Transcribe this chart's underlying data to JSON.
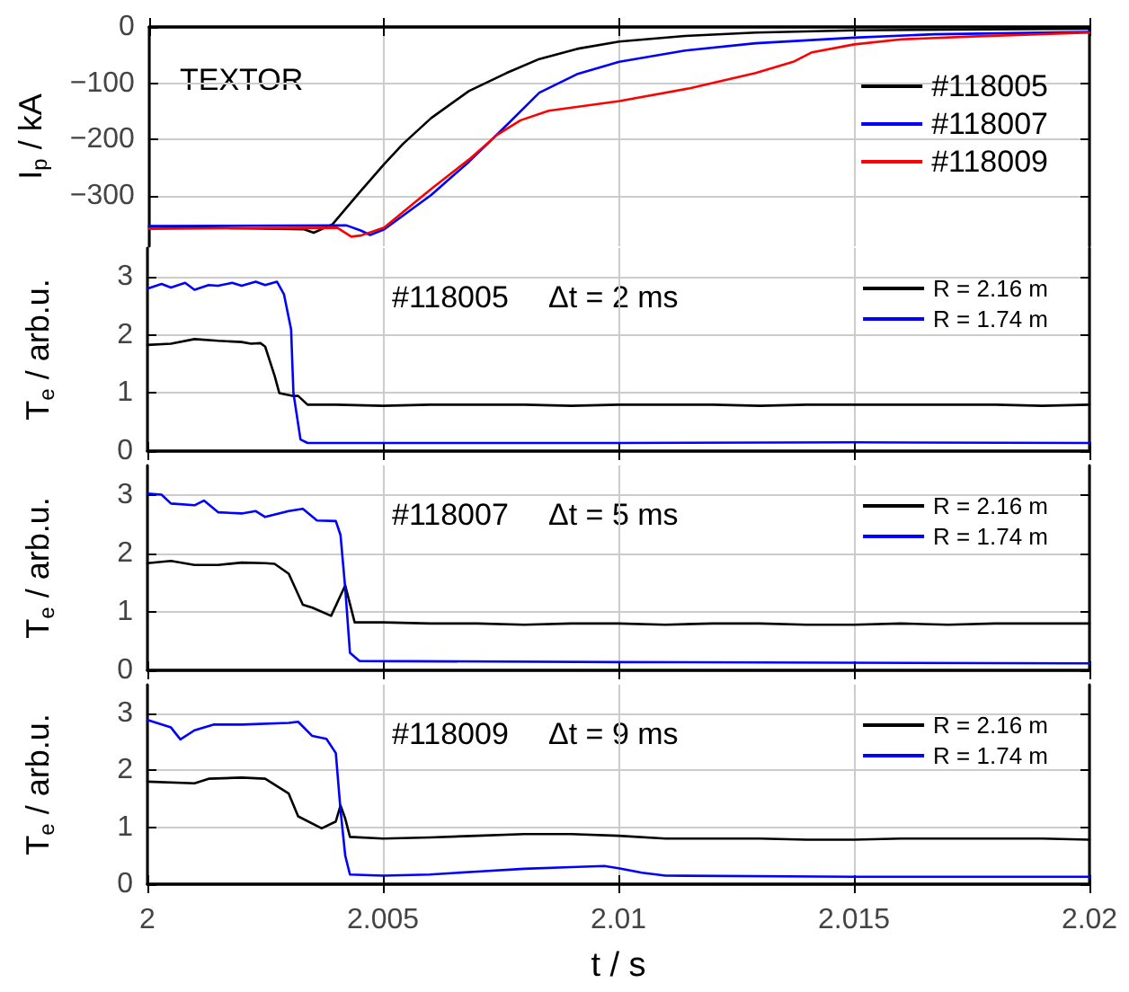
{
  "chart_data": [
    {
      "type": "line",
      "ylabel": "I$_{p}$ / kA",
      "annotations": [
        "TEXTOR"
      ],
      "legend": "right",
      "grid": true,
      "marker": "none",
      "tick_labels": "y",
      "xlim": [
        2,
        2.02
      ],
      "xticks": [
        2,
        2.005,
        2.01,
        2.015,
        2.02
      ],
      "ylim": [
        -390,
        0
      ],
      "yticks": [
        {
          "value": -300,
          "label": "−300"
        },
        {
          "value": -200,
          "label": "−200"
        },
        {
          "value": -100,
          "label": "−100"
        },
        0
      ],
      "series": [
        {
          "name": "#118005",
          "color": "#000000",
          "x": [
            2,
            2.0033,
            2.0035,
            2.0039,
            2.0045,
            2.005,
            2.0054,
            2.006,
            2.0068,
            2.0076,
            2.0083,
            2.0091,
            2.01,
            2.0114,
            2.0129,
            2.015,
            2.02
          ],
          "values": [
            -355,
            -360,
            -366,
            -351,
            -292,
            -244,
            -208,
            -162,
            -114,
            -82,
            -57,
            -39,
            -26,
            -16,
            -10,
            -6,
            -3
          ]
        },
        {
          "name": "#118007",
          "color": "#0000ff",
          "x": [
            2,
            2.0042,
            2.0045,
            2.0047,
            2.005,
            2.006,
            2.0068,
            2.0076,
            2.0083,
            2.0091,
            2.01,
            2.0114,
            2.0129,
            2.015,
            2.0167,
            2.02
          ],
          "values": [
            -354,
            -353,
            -362,
            -370,
            -360,
            -299,
            -240,
            -175,
            -117,
            -84,
            -62,
            -42,
            -29,
            -19,
            -13,
            -9
          ]
        },
        {
          "name": "#118009",
          "color": "#ff0000",
          "x": [
            2,
            2.004,
            2.0043,
            2.0045,
            2.005,
            2.006,
            2.0068,
            2.0074,
            2.0079,
            2.0085,
            2.01,
            2.0115,
            2.0129,
            2.0137,
            2.0141,
            2.015,
            2.016,
            2.0175,
            2.02
          ],
          "values": [
            -359,
            -357,
            -373,
            -371,
            -357,
            -288,
            -236,
            -192,
            -166,
            -149,
            -132,
            -109,
            -82,
            -62,
            -45,
            -31,
            -22,
            -17,
            -10
          ]
        }
      ]
    },
    {
      "type": "line",
      "ylabel": "T$_{e}$ / arb.u.",
      "annotations": [
        "#118005",
        "Δt = 2 ms"
      ],
      "legend": "top right",
      "grid": true,
      "marker": "none",
      "tick_labels": "y",
      "xlim": [
        2,
        2.02
      ],
      "xticks": [
        2,
        2.005,
        2.01,
        2.015,
        2.02
      ],
      "ylim": [
        0,
        3.5
      ],
      "yticks": [
        0,
        1,
        2,
        3
      ],
      "series": [
        {
          "name": "R = 2.16 m",
          "color": "#000000",
          "x": [
            2,
            2.0005,
            2.001,
            2.0015,
            2.002,
            2.0022,
            2.0024,
            2.0025,
            2.0027,
            2.0028,
            2.0031,
            2.0032,
            2.0034,
            2.004,
            2.005,
            2.006,
            2.007,
            2.008,
            2.009,
            2.01,
            2.011,
            2.012,
            2.013,
            2.014,
            2.015,
            2.016,
            2.017,
            2.018,
            2.019,
            2.02
          ],
          "values": [
            1.83,
            1.85,
            1.93,
            1.9,
            1.88,
            1.85,
            1.86,
            1.8,
            1.3,
            1.0,
            0.95,
            0.95,
            0.8,
            0.8,
            0.78,
            0.8,
            0.8,
            0.8,
            0.78,
            0.8,
            0.8,
            0.8,
            0.78,
            0.8,
            0.8,
            0.8,
            0.8,
            0.8,
            0.78,
            0.8
          ]
        },
        {
          "name": "R = 1.74 m",
          "color": "#0000ff",
          "x": [
            2,
            2.0003,
            2.0005,
            2.0008,
            2.001,
            2.0013,
            2.0015,
            2.0018,
            2.002,
            2.0023,
            2.0025,
            2.00275,
            2.0029,
            2.00305,
            2.0031,
            2.00325,
            2.0034,
            2.005,
            2.01,
            2.015,
            2.02
          ],
          "values": [
            2.8,
            2.88,
            2.82,
            2.9,
            2.78,
            2.86,
            2.85,
            2.9,
            2.85,
            2.92,
            2.86,
            2.92,
            2.7,
            2.1,
            1.0,
            0.2,
            0.14,
            0.14,
            0.14,
            0.15,
            0.14
          ]
        }
      ]
    },
    {
      "type": "line",
      "ylabel": "T$_{e}$ / arb.u.",
      "annotations": [
        "#118007",
        "Δt = 5 ms"
      ],
      "legend": "top right",
      "grid": true,
      "marker": "none",
      "tick_labels": "y",
      "xlim": [
        2,
        2.02
      ],
      "xticks": [
        2,
        2.005,
        2.01,
        2.015,
        2.02
      ],
      "ylim": [
        0,
        3.5
      ],
      "yticks": [
        0,
        1,
        2,
        3
      ],
      "series": [
        {
          "name": "R = 2.16 m",
          "color": "#000000",
          "x": [
            2,
            2.0005,
            2.001,
            2.0015,
            2.002,
            2.0025,
            2.0027,
            2.003,
            2.0033,
            2.0035,
            2.0039,
            2.0042,
            2.0044,
            2.005,
            2.006,
            2.007,
            2.008,
            2.009,
            2.01,
            2.011,
            2.012,
            2.013,
            2.014,
            2.015,
            2.016,
            2.017,
            2.018,
            2.019,
            2.02
          ],
          "values": [
            1.83,
            1.87,
            1.8,
            1.8,
            1.84,
            1.83,
            1.82,
            1.65,
            1.12,
            1.07,
            0.93,
            1.45,
            0.82,
            0.82,
            0.8,
            0.8,
            0.78,
            0.8,
            0.8,
            0.78,
            0.8,
            0.8,
            0.78,
            0.78,
            0.8,
            0.78,
            0.8,
            0.8,
            0.8
          ]
        },
        {
          "name": "R = 1.74 m",
          "color": "#0000ff",
          "x": [
            2,
            2.0003,
            2.0005,
            2.001,
            2.0012,
            2.0015,
            2.002,
            2.0023,
            2.0025,
            2.003,
            2.0033,
            2.0036,
            2.004,
            2.0041,
            2.0042,
            2.0043,
            2.0045,
            2.01,
            2.02
          ],
          "values": [
            3.02,
            3.0,
            2.85,
            2.82,
            2.9,
            2.7,
            2.68,
            2.72,
            2.62,
            2.72,
            2.76,
            2.56,
            2.55,
            2.31,
            1.4,
            0.3,
            0.16,
            0.14,
            0.12
          ]
        }
      ]
    },
    {
      "type": "line",
      "ylabel": "T$_{e}$ / arb.u.",
      "xlabel": "t / s",
      "annotations": [
        "#118009",
        "Δt = 9 ms"
      ],
      "legend": "top right",
      "grid": true,
      "marker": "none",
      "xlim": [
        2,
        2.02
      ],
      "xticks": [
        2,
        2.005,
        2.01,
        2.015,
        2.02
      ],
      "ylim": [
        0,
        3.5
      ],
      "yticks": [
        0,
        1,
        2,
        3
      ],
      "series": [
        {
          "name": "R = 2.16 m",
          "color": "#000000",
          "x": [
            2,
            2.001,
            2.0013,
            2.002,
            2.0025,
            2.003,
            2.0032,
            2.0037,
            2.004,
            2.0041,
            2.0042,
            2.0043,
            2.005,
            2.006,
            2.007,
            2.008,
            2.009,
            2.01,
            2.011,
            2.012,
            2.013,
            2.014,
            2.015,
            2.016,
            2.017,
            2.018,
            2.019,
            2.02
          ],
          "values": [
            1.8,
            1.77,
            1.85,
            1.87,
            1.85,
            1.59,
            1.19,
            0.98,
            1.1,
            1.38,
            1.15,
            0.83,
            0.8,
            0.82,
            0.85,
            0.88,
            0.88,
            0.85,
            0.8,
            0.8,
            0.8,
            0.78,
            0.78,
            0.8,
            0.8,
            0.8,
            0.8,
            0.78
          ]
        },
        {
          "name": "R = 1.74 m",
          "color": "#0000ff",
          "x": [
            2,
            2.0005,
            2.0007,
            2.001,
            2.0014,
            2.002,
            2.003,
            2.0032,
            2.0035,
            2.0038,
            2.004,
            2.0041,
            2.0042,
            2.0043,
            2.005,
            2.006,
            2.007,
            2.008,
            2.009,
            2.0097,
            2.01,
            2.0105,
            2.011,
            2.015,
            2.02
          ],
          "values": [
            2.88,
            2.75,
            2.54,
            2.7,
            2.8,
            2.8,
            2.83,
            2.85,
            2.6,
            2.55,
            2.3,
            1.3,
            0.5,
            0.17,
            0.15,
            0.17,
            0.22,
            0.27,
            0.3,
            0.32,
            0.28,
            0.2,
            0.15,
            0.13,
            0.13
          ]
        }
      ]
    }
  ]
}
